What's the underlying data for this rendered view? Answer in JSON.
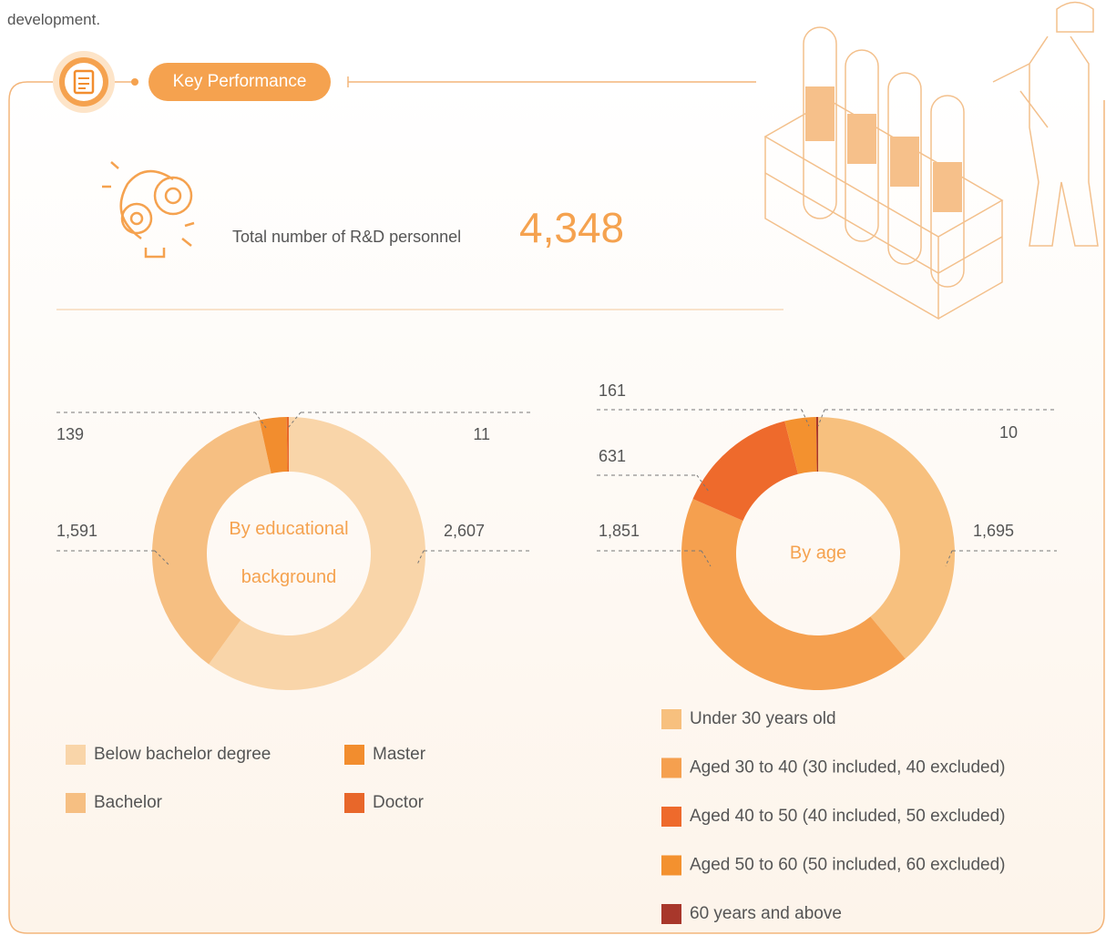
{
  "intro_text": "development.",
  "section_title": "Key Performance",
  "total_label": "Total number of R&D personnel",
  "total_value": "4,348",
  "chart_data": [
    {
      "type": "pie",
      "title": "By educational background",
      "categories": [
        "Below bachelor degree",
        "Bachelor",
        "Master",
        "Doctor"
      ],
      "values": [
        2607,
        1591,
        139,
        11
      ],
      "value_labels": [
        "2,607",
        "1,591",
        "139",
        "11"
      ],
      "colors": [
        "#f9d5a9",
        "#f6bf82",
        "#f28d2e",
        "#e8672a"
      ]
    },
    {
      "type": "pie",
      "title": "By age",
      "categories": [
        "Under 30 years old",
        "Aged 30 to 40 (30 included, 40 excluded)",
        "Aged 40 to 50 (40 included, 50 excluded)",
        "Aged 50 to 60 (50 included, 60 excluded)",
        "60 years and above"
      ],
      "values": [
        1695,
        1851,
        631,
        161,
        10
      ],
      "value_labels": [
        "1,695",
        "1,851",
        "631",
        "161",
        "10"
      ],
      "colors": [
        "#f7c07e",
        "#f5a04f",
        "#ee6a2c",
        "#f3912f",
        "#a8372b"
      ]
    }
  ]
}
